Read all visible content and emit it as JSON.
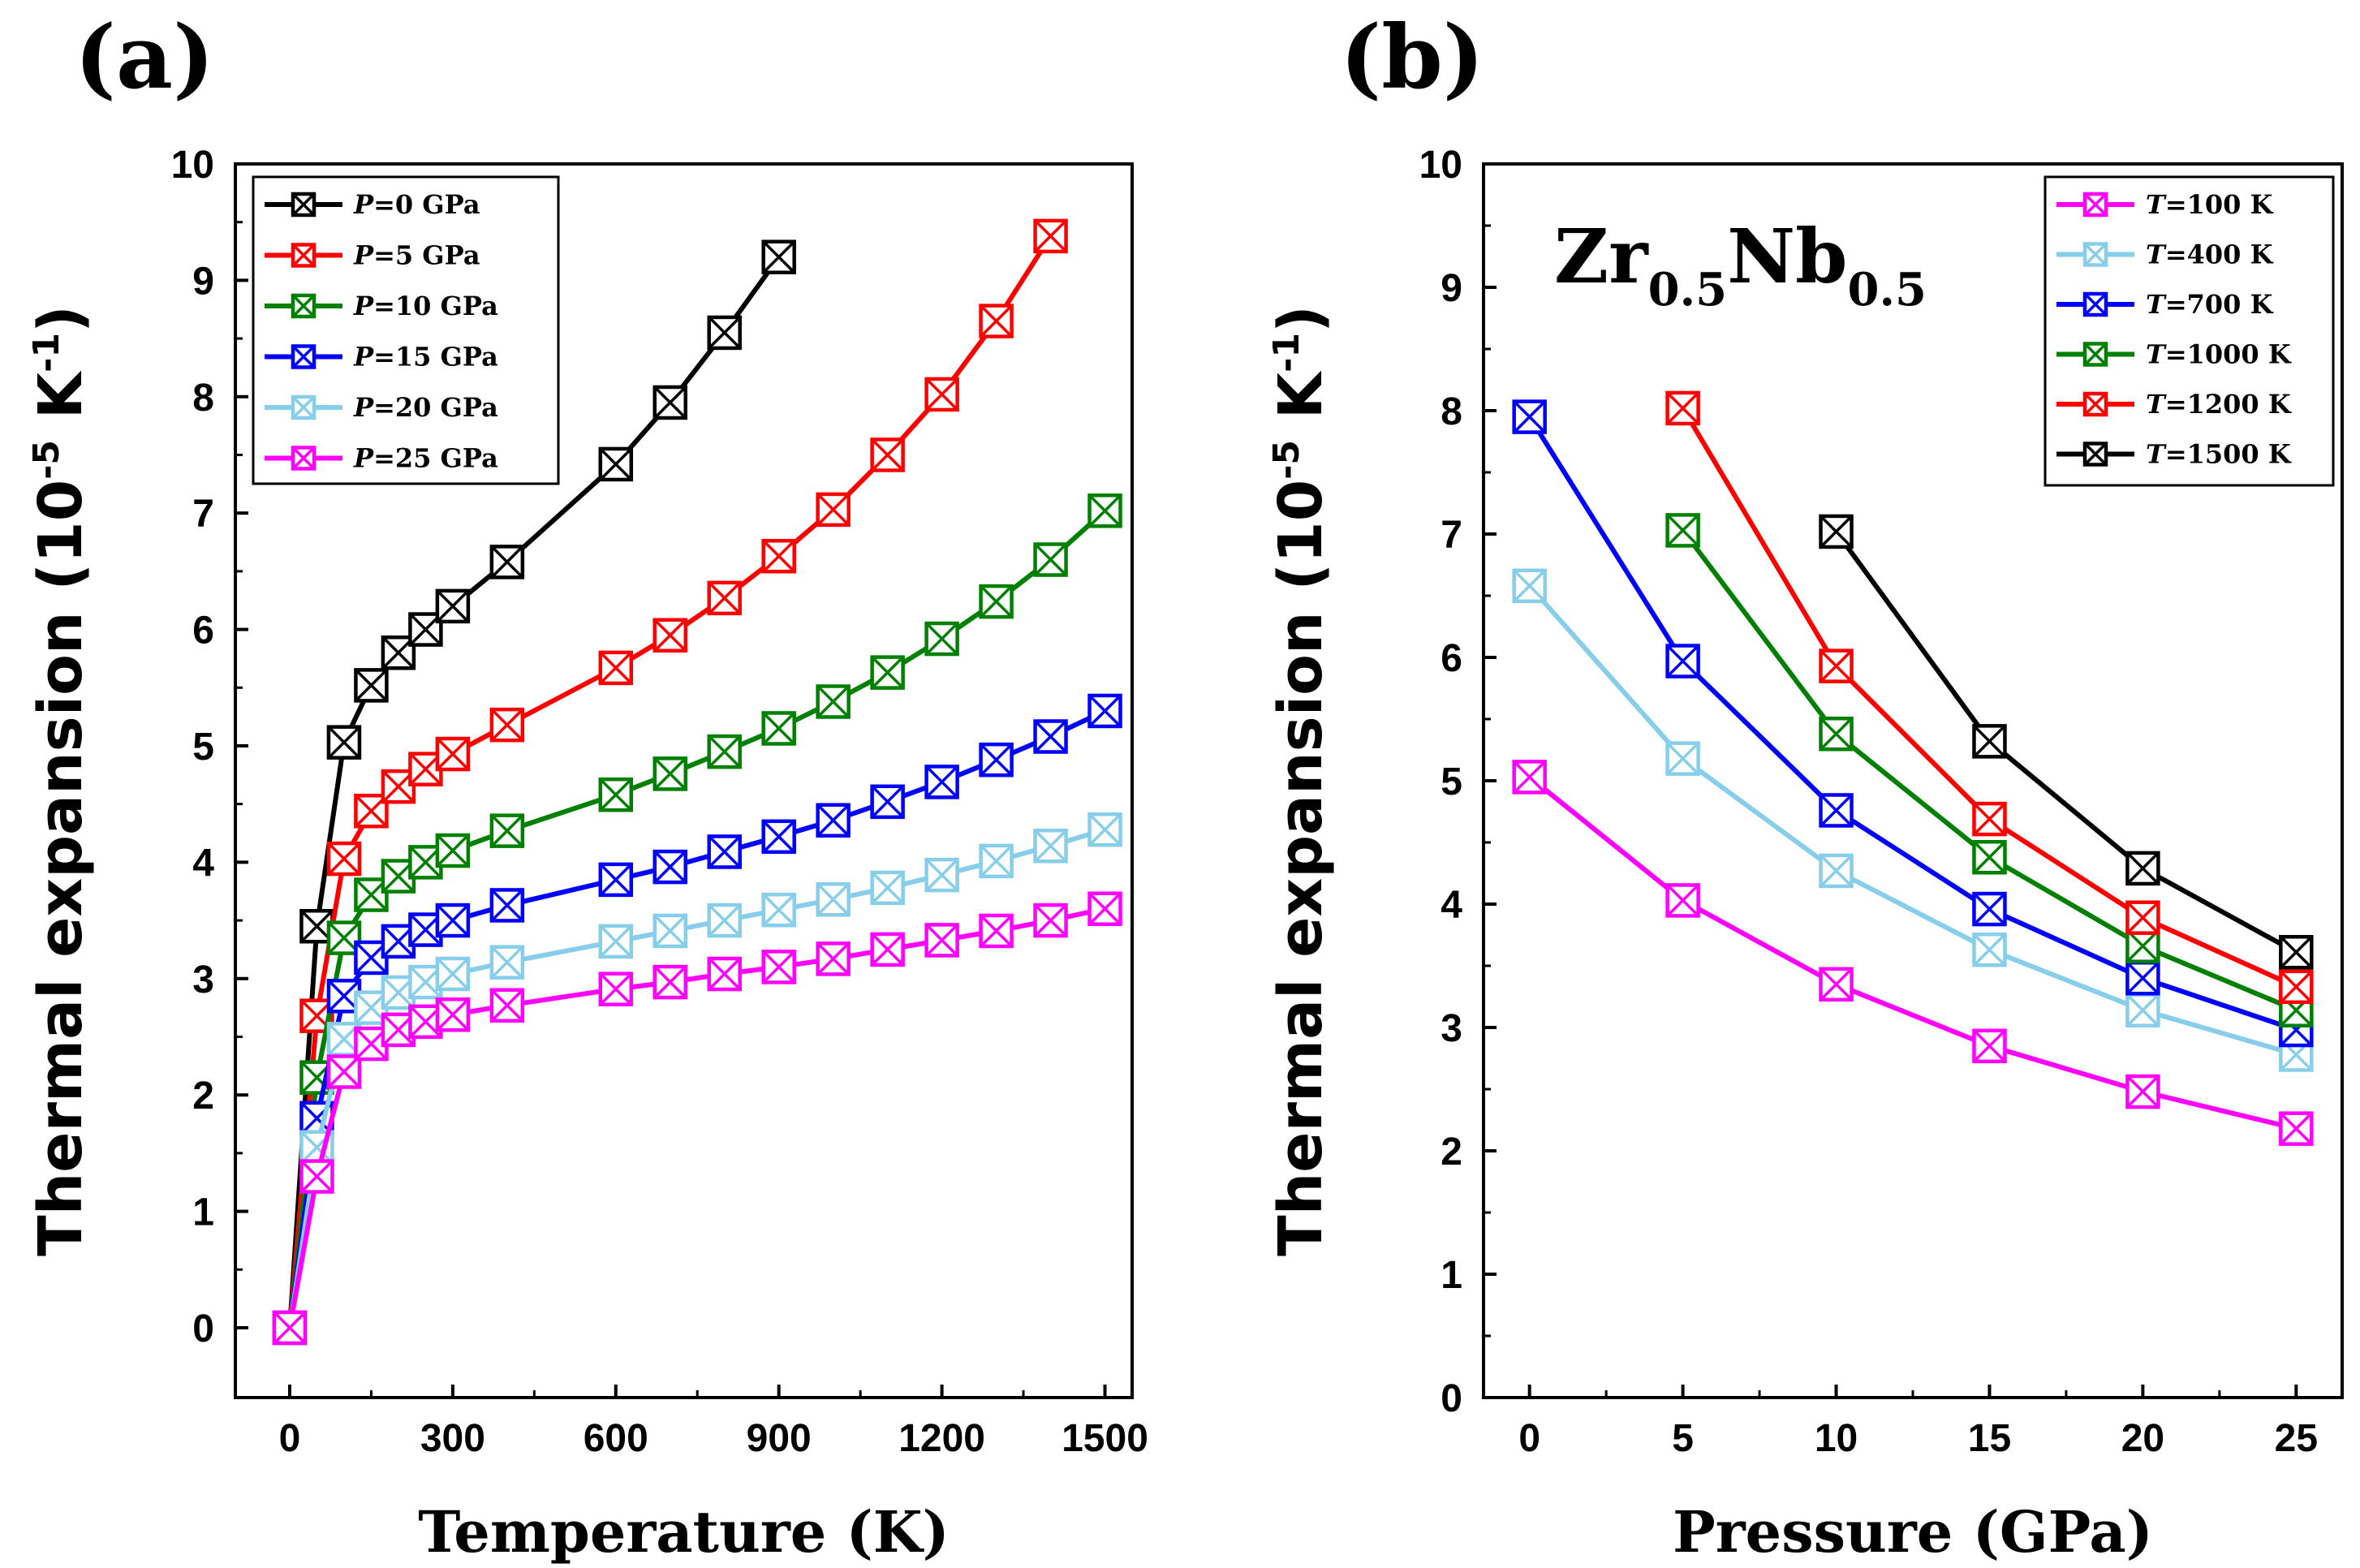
{
  "chart_data": [
    {
      "panel": "(a)",
      "type": "line",
      "xlabel": "Temperature (K)",
      "ylabel": "Thermal  expansion (10",
      "ylabel_exp": "-5",
      "ylabel_unit": " K",
      "ylabel_unit_exp": "-1",
      "ylabel_close": ")",
      "xlim": [
        -100,
        1550
      ],
      "ylim": [
        -0.6,
        10
      ],
      "xticks": [
        0,
        300,
        600,
        900,
        1200,
        1500
      ],
      "yticks": [
        0,
        1,
        2,
        3,
        4,
        5,
        6,
        7,
        8,
        9,
        10
      ],
      "legend_position": "top-left",
      "series": [
        {
          "var": "P",
          "label": "=0 GPa",
          "color": "#000000",
          "x": [
            0,
            50,
            100,
            150,
            200,
            250,
            300,
            400,
            600,
            700,
            800,
            900
          ],
          "y": [
            0,
            3.45,
            5.03,
            5.52,
            5.8,
            6.0,
            6.2,
            6.58,
            7.42,
            7.95,
            8.55,
            9.2
          ]
        },
        {
          "var": "P",
          "label": "=5 GPa",
          "color": "#ff0000",
          "x": [
            0,
            50,
            100,
            150,
            200,
            250,
            300,
            400,
            600,
            700,
            800,
            900,
            1000,
            1100,
            1200,
            1300,
            1400
          ],
          "y": [
            0,
            2.68,
            4.03,
            4.44,
            4.65,
            4.8,
            4.93,
            5.18,
            5.67,
            5.95,
            6.27,
            6.63,
            7.03,
            7.5,
            8.02,
            8.65,
            9.38
          ]
        },
        {
          "var": "P",
          "label": "=10 GPa",
          "color": "#008000",
          "x": [
            0,
            50,
            100,
            150,
            200,
            250,
            300,
            400,
            600,
            700,
            800,
            900,
            1000,
            1100,
            1200,
            1300,
            1400,
            1500
          ],
          "y": [
            0,
            2.15,
            3.35,
            3.72,
            3.88,
            4.0,
            4.1,
            4.27,
            4.58,
            4.76,
            4.95,
            5.15,
            5.38,
            5.63,
            5.92,
            6.24,
            6.6,
            7.02
          ]
        },
        {
          "var": "P",
          "label": "=15 GPa",
          "color": "#0000ff",
          "x": [
            0,
            50,
            100,
            150,
            200,
            250,
            300,
            400,
            600,
            700,
            800,
            900,
            1000,
            1100,
            1200,
            1300,
            1400,
            1500
          ],
          "y": [
            0,
            1.8,
            2.85,
            3.18,
            3.32,
            3.42,
            3.5,
            3.63,
            3.85,
            3.96,
            4.09,
            4.22,
            4.36,
            4.52,
            4.69,
            4.88,
            5.08,
            5.3
          ]
        },
        {
          "var": "P",
          "label": "=20 GPa",
          "color": "#87ceeb",
          "x": [
            0,
            50,
            100,
            150,
            200,
            250,
            300,
            400,
            600,
            700,
            800,
            900,
            1000,
            1100,
            1200,
            1300,
            1400,
            1500
          ],
          "y": [
            0,
            1.55,
            2.48,
            2.75,
            2.88,
            2.97,
            3.04,
            3.14,
            3.32,
            3.41,
            3.5,
            3.59,
            3.68,
            3.78,
            3.89,
            4.01,
            4.14,
            4.28
          ]
        },
        {
          "var": "P",
          "label": "=25 GPa",
          "color": "#ff00ff",
          "x": [
            0,
            50,
            100,
            150,
            200,
            250,
            300,
            400,
            600,
            700,
            800,
            900,
            1000,
            1100,
            1200,
            1300,
            1400,
            1500
          ],
          "y": [
            0,
            1.3,
            2.2,
            2.44,
            2.56,
            2.63,
            2.69,
            2.77,
            2.91,
            2.97,
            3.04,
            3.1,
            3.17,
            3.25,
            3.33,
            3.41,
            3.5,
            3.6
          ]
        }
      ]
    },
    {
      "panel": "(b)",
      "type": "line",
      "xlabel": "Pressure (GPa)",
      "ylabel": "Thermal  expansion (10",
      "ylabel_exp": "-5",
      "ylabel_unit": " K",
      "ylabel_unit_exp": "-1",
      "ylabel_close": ")",
      "xlim": [
        -1.5,
        26.5
      ],
      "ylim": [
        0,
        10
      ],
      "xticks": [
        0,
        5,
        10,
        15,
        20,
        25
      ],
      "yticks": [
        0,
        1,
        2,
        3,
        4,
        5,
        6,
        7,
        8,
        9,
        10
      ],
      "legend_position": "top-right",
      "annotation": {
        "parts": [
          "Zr",
          "0.5",
          "Nb",
          "0.5"
        ]
      },
      "series": [
        {
          "var": "T",
          "label": "=100 K",
          "color": "#ff00ff",
          "x": [
            0,
            5,
            10,
            15,
            20,
            25
          ],
          "y": [
            5.03,
            4.03,
            3.35,
            2.85,
            2.48,
            2.18
          ]
        },
        {
          "var": "T",
          "label": "=400 K",
          "color": "#87ceeb",
          "x": [
            0,
            5,
            10,
            15,
            20,
            25
          ],
          "y": [
            6.58,
            5.18,
            4.27,
            3.63,
            3.14,
            2.78
          ]
        },
        {
          "var": "T",
          "label": "=700 K",
          "color": "#0000ff",
          "x": [
            0,
            5,
            10,
            15,
            20,
            25
          ],
          "y": [
            7.95,
            5.97,
            4.76,
            3.96,
            3.4,
            2.98
          ]
        },
        {
          "var": "T",
          "label": "=1000 K",
          "color": "#008000",
          "x": [
            5,
            10,
            15,
            20,
            25
          ],
          "y": [
            7.03,
            5.38,
            4.38,
            3.66,
            3.14
          ]
        },
        {
          "var": "T",
          "label": "=1200 K",
          "color": "#ff0000",
          "x": [
            5,
            10,
            15,
            20,
            25
          ],
          "y": [
            8.02,
            5.93,
            4.69,
            3.89,
            3.33
          ]
        },
        {
          "var": "T",
          "label": "=1500 K",
          "color": "#000000",
          "x": [
            10,
            15,
            20,
            25
          ],
          "y": [
            7.02,
            5.32,
            4.29,
            3.61
          ]
        }
      ]
    }
  ]
}
